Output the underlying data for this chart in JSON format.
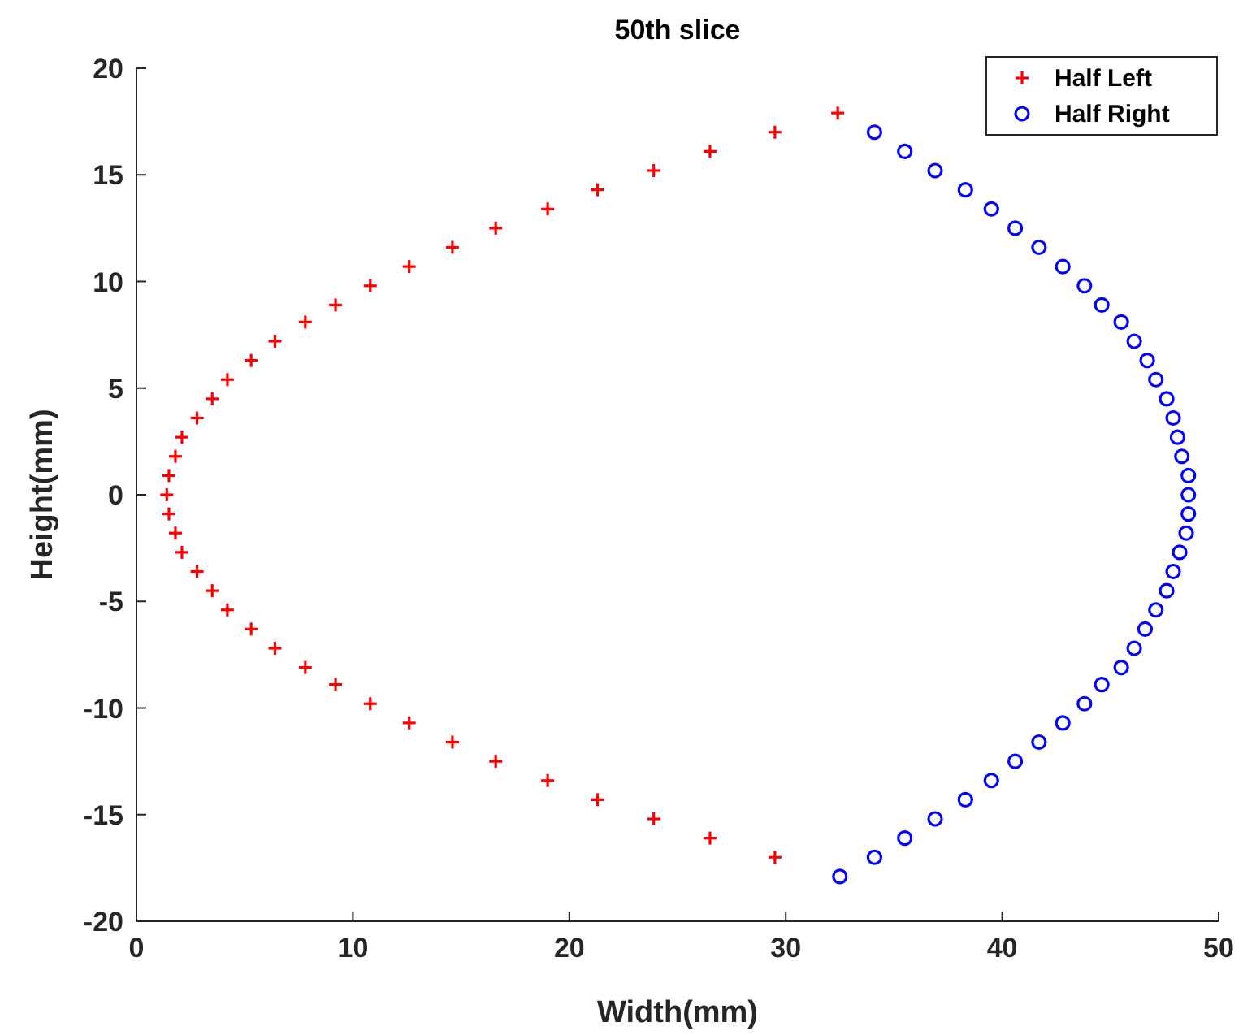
{
  "chart_data": {
    "type": "scatter",
    "title": "50th slice",
    "xlabel": "Width(mm)",
    "ylabel": "Height(mm)",
    "xlim": [
      0,
      50
    ],
    "xticks": [
      0,
      10,
      20,
      30,
      40,
      50
    ],
    "ylim": [
      -20,
      20
    ],
    "yticks": [
      -20,
      -15,
      -10,
      -5,
      0,
      5,
      10,
      15,
      20
    ],
    "grid": false,
    "legend": "top right",
    "series": [
      {
        "name": "Half Left",
        "color": "#ff0000",
        "marker": "cross",
        "x": [
          32.4,
          29.5,
          26.5,
          23.9,
          21.3,
          19.0,
          16.6,
          14.6,
          12.6,
          10.8,
          9.2,
          7.8,
          6.4,
          5.3,
          4.2,
          3.5,
          2.8,
          2.1,
          1.8,
          1.5,
          1.4,
          1.5,
          1.8,
          2.1,
          2.8,
          3.5,
          4.2,
          5.3,
          6.4,
          7.8,
          9.2,
          10.8,
          12.6,
          14.6,
          16.6,
          19.0,
          21.3,
          23.9,
          26.5,
          29.5
        ],
        "values": [
          17.9,
          17.0,
          16.1,
          15.2,
          14.3,
          13.4,
          12.5,
          11.6,
          10.7,
          9.8,
          8.9,
          8.1,
          7.2,
          6.3,
          5.4,
          4.5,
          3.6,
          2.7,
          1.8,
          0.9,
          0,
          -0.9,
          -1.8,
          -2.7,
          -3.6,
          -4.5,
          -5.4,
          -6.3,
          -7.2,
          -8.1,
          -8.9,
          -9.8,
          -10.7,
          -11.6,
          -12.5,
          -13.4,
          -14.3,
          -15.2,
          -16.1,
          -17.0
        ]
      },
      {
        "name": "Half Right",
        "color": "#0000ff",
        "marker": "circle",
        "x": [
          34.1,
          35.5,
          36.9,
          38.3,
          39.5,
          40.6,
          41.7,
          42.8,
          43.8,
          44.6,
          45.5,
          46.1,
          46.7,
          47.1,
          47.6,
          47.9,
          48.1,
          48.3,
          48.6,
          48.6,
          48.6,
          48.5,
          48.2,
          47.9,
          47.6,
          47.1,
          46.6,
          46.1,
          45.5,
          44.6,
          43.8,
          42.8,
          41.7,
          40.6,
          39.5,
          38.3,
          36.9,
          35.5,
          34.1,
          32.5
        ],
        "values": [
          17.0,
          16.1,
          15.2,
          14.3,
          13.4,
          12.5,
          11.6,
          10.7,
          9.8,
          8.9,
          8.1,
          7.2,
          6.3,
          5.4,
          4.5,
          3.6,
          2.7,
          1.8,
          0.9,
          0,
          -0.9,
          -1.8,
          -2.7,
          -3.6,
          -4.5,
          -5.4,
          -6.3,
          -7.2,
          -8.1,
          -8.9,
          -9.8,
          -10.7,
          -11.6,
          -12.5,
          -13.4,
          -14.3,
          -15.2,
          -16.1,
          -17.0,
          -17.9
        ]
      }
    ]
  }
}
